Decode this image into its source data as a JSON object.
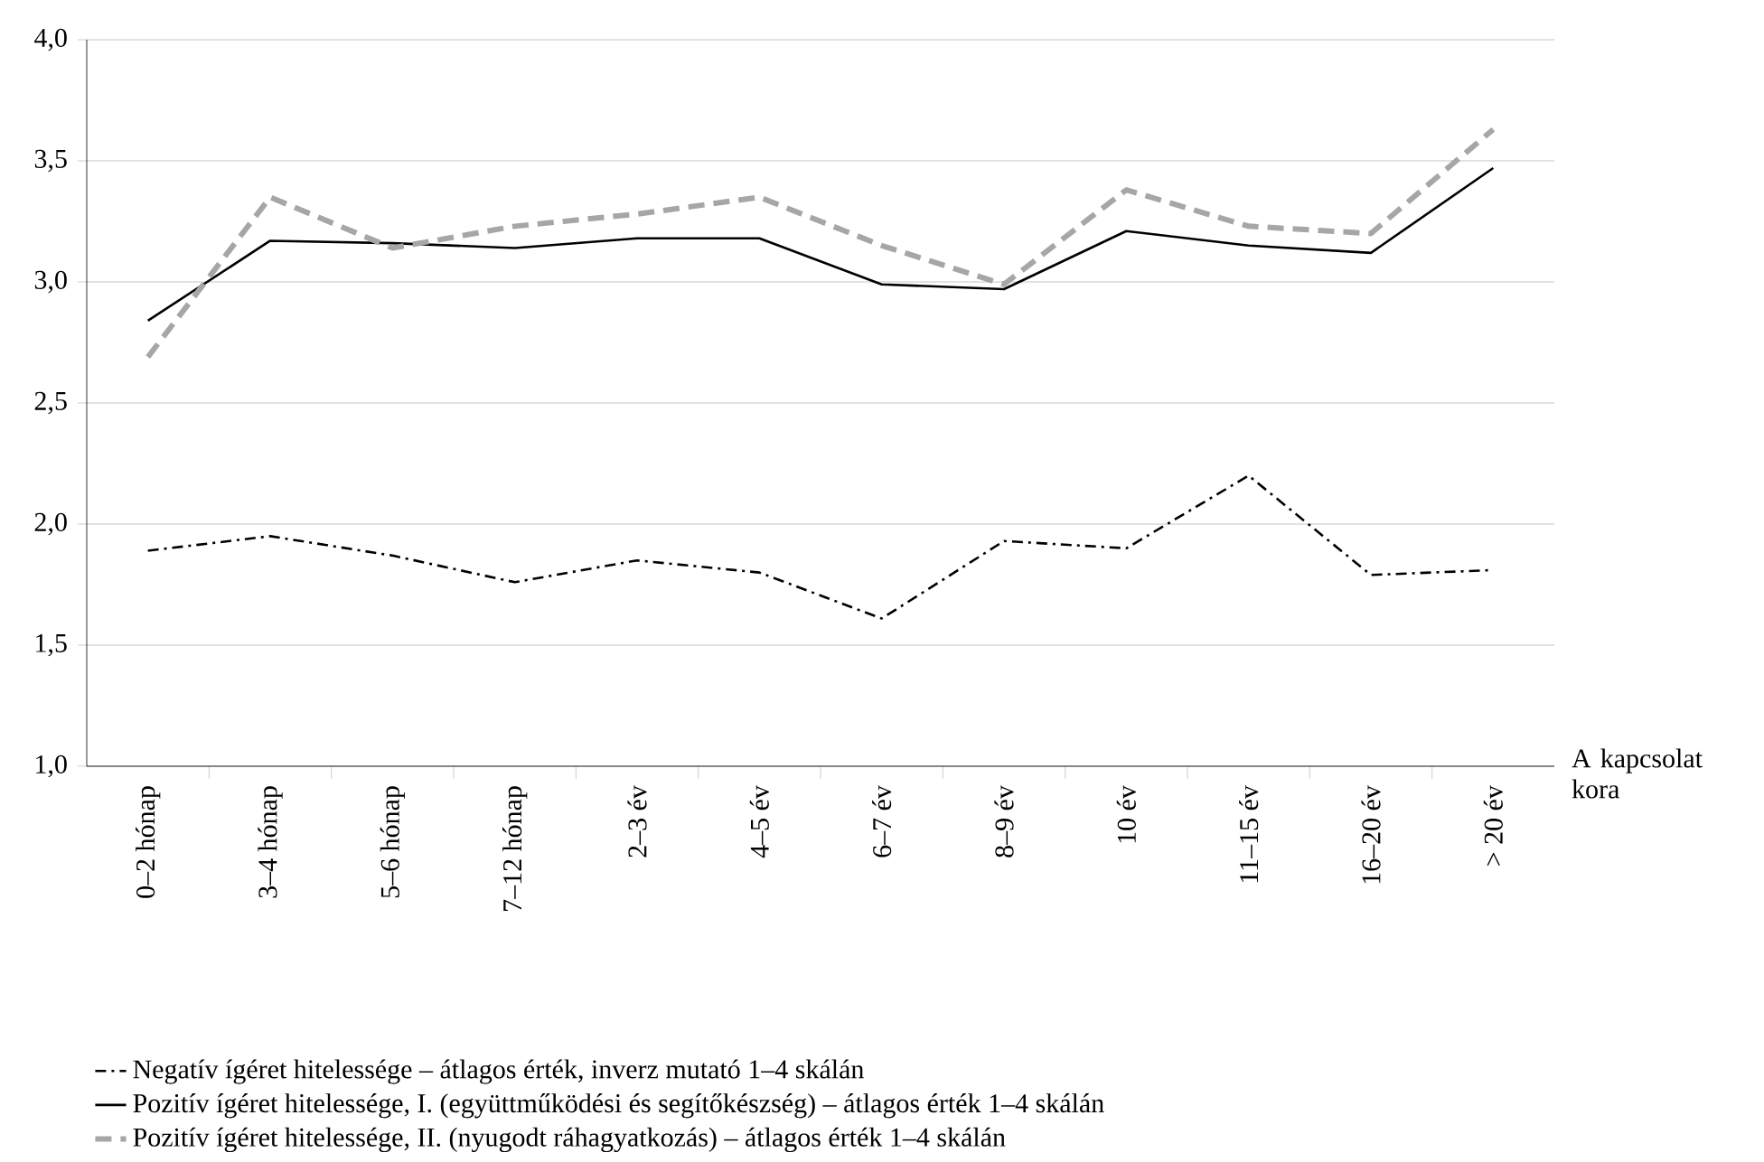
{
  "chart_data": {
    "type": "line",
    "categories": [
      "0–2 hónap",
      "3–4 hónap",
      "5–6 hónap",
      "7–12 hónap",
      "2–3 év",
      "4–5 év",
      "6–7 év",
      "8–9 év",
      "10 év",
      "11–15 év",
      "16–20 év",
      "> 20 év"
    ],
    "xlabel": "A kapcsolat kora",
    "ylim": [
      1.0,
      4.0
    ],
    "yticks": [
      {
        "value": 1.0,
        "label": "1,0"
      },
      {
        "value": 1.5,
        "label": "1,5"
      },
      {
        "value": 2.0,
        "label": "2,0"
      },
      {
        "value": 2.5,
        "label": "2,5"
      },
      {
        "value": 3.0,
        "label": "3,0"
      },
      {
        "value": 3.5,
        "label": "3,5"
      },
      {
        "value": 4.0,
        "label": "4,0"
      }
    ],
    "grid": "y",
    "legend": "bottom",
    "marker": "none",
    "series": [
      {
        "name": "Negatív ígéret hitelessége – átlagos érték, inverz mutató 1–4 skálán",
        "color": "#000000",
        "line_style": "dashdot",
        "values": [
          1.89,
          1.95,
          1.87,
          1.76,
          1.85,
          1.8,
          1.61,
          1.93,
          1.9,
          2.2,
          1.79,
          1.81
        ]
      },
      {
        "name": "Pozitív ígéret hitelessége,  I. (együttműködési és segítőkészség) – átlagos érték 1–4 skálán",
        "color": "#000000",
        "line_style": "solid",
        "values": [
          2.84,
          3.17,
          3.16,
          3.14,
          3.18,
          3.18,
          2.99,
          2.97,
          3.21,
          3.15,
          3.12,
          3.47
        ]
      },
      {
        "name": "Pozitív ígéret hitelessége, II. (nyugodt ráhagyatkozás) – átlagos érték 1–4 skálán",
        "color": "#a6a6a6",
        "line_style": "dashed",
        "values": [
          2.69,
          3.35,
          3.14,
          3.23,
          3.28,
          3.35,
          3.15,
          2.99,
          3.38,
          3.23,
          3.2,
          3.63
        ]
      }
    ]
  }
}
